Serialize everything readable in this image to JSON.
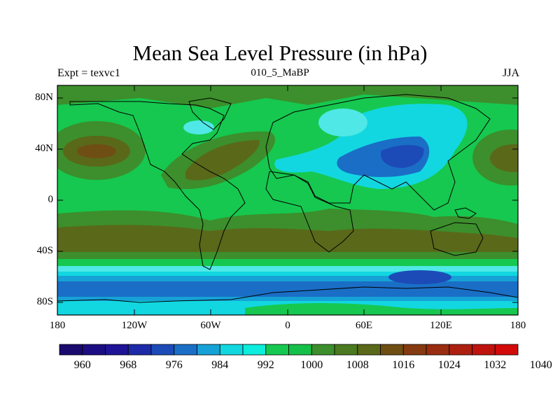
{
  "title": "Mean Sea Level Pressure (in hPa)",
  "left_string": "Expt = texvc1",
  "center_string": "010_5_MaBP",
  "right_string": "JJA",
  "lat_labels": [
    "80N",
    "40N",
    "0",
    "40S",
    "80S"
  ],
  "lon_labels": [
    "180",
    "120W",
    "60W",
    "0",
    "60E",
    "120E",
    "180"
  ],
  "colorbar": {
    "labels": [
      "960",
      "968",
      "976",
      "984",
      "992",
      "1000",
      "1008",
      "1016",
      "1024",
      "1032",
      "1040"
    ],
    "colors": [
      "#1a0a6e",
      "#1c0d82",
      "#1f1396",
      "#1d2aa8",
      "#1c4bb8",
      "#1a6ec6",
      "#16a2d6",
      "#12d7e0",
      "#0ceddd",
      "#16c84f",
      "#15c048",
      "#3c8f2c",
      "#4b7a20",
      "#5a681a",
      "#6f4e14",
      "#853a10",
      "#9a2c10",
      "#ad2010",
      "#bf140e",
      "#d20a0a"
    ]
  },
  "legend_colors": {
    "cyan_low": "#4fe8e6",
    "cyan": "#12d7e0",
    "blue_mid": "#1a6ec6",
    "blue_low": "#1c4bb8",
    "green": "#16c84f",
    "olive": "#4b7a20",
    "olive_dark": "#5a681a",
    "brown": "#6f4e14"
  }
}
